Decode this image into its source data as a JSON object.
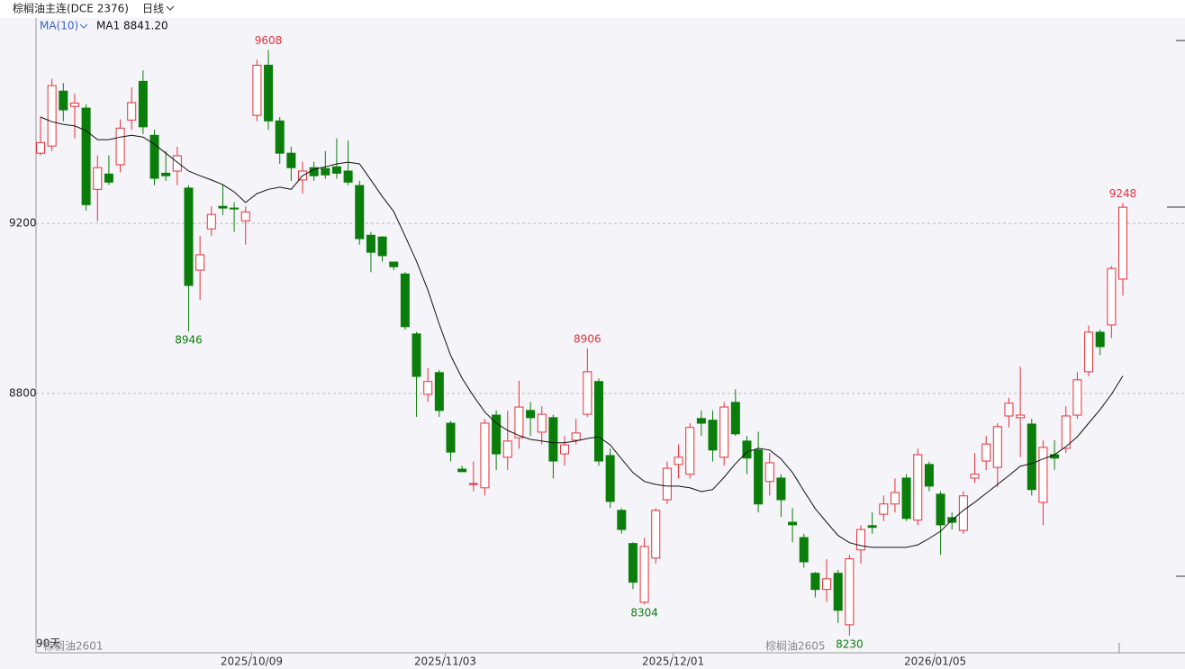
{
  "chart_data": {
    "type": "candlestick",
    "title": "棕榈油主连(DCE 2376)",
    "period": "日线",
    "indicator": "MA(10)",
    "ma_label": "MA1 8841.20",
    "range_label": "90天",
    "contract_labels": [
      "棕榈油2601",
      "棕榈油2605"
    ],
    "up_color": "#e8303a",
    "down_color": "#0b7d0b",
    "ma_color": "#111111",
    "grid": true,
    "ylim": [
      8190,
      9683
    ],
    "yticks": [
      9200,
      8800
    ],
    "x": [
      null,
      null,
      null,
      null,
      null,
      null,
      null,
      null,
      null,
      null,
      null,
      null,
      null,
      null,
      null,
      null,
      null,
      null,
      null,
      "2025/10/09",
      null,
      null,
      null,
      null,
      null,
      null,
      null,
      null,
      null,
      null,
      null,
      null,
      null,
      null,
      null,
      null,
      "2025/11/03",
      null,
      null,
      null,
      null,
      null,
      null,
      null,
      null,
      null,
      null,
      null,
      null,
      null,
      null,
      null,
      null,
      null,
      null,
      null,
      "2025/12/01",
      null,
      null,
      null,
      null,
      null,
      null,
      null,
      null,
      null,
      null,
      null,
      null,
      null,
      null,
      null,
      null,
      null,
      null,
      null,
      null,
      null,
      null,
      "2026/01/05",
      null,
      null,
      null,
      null,
      null,
      null,
      null,
      null,
      null,
      null,
      null,
      null,
      null,
      null,
      null,
      null
    ],
    "open": [
      9365,
      9382,
      9511,
      9475,
      9471,
      9280,
      9316,
      9338,
      9443,
      9534,
      9407,
      9318,
      9323,
      9283,
      9090,
      9187,
      9240,
      9236,
      9206,
      9454,
      9572,
      9441,
      9365,
      9302,
      9331,
      9329,
      9333,
      9323,
      9289,
      9172,
      9168,
      9109,
      9081,
      8940,
      8798,
      8849,
      8730,
      8622,
      8588,
      8578,
      8749,
      8650,
      8696,
      8760,
      8709,
      8743,
      8658,
      8690,
      8751,
      8828,
      8654,
      8525,
      8447,
      8309,
      8413,
      8550,
      8633,
      8610,
      8741,
      8737,
      8650,
      8779,
      8688,
      8667,
      8593,
      8601,
      8497,
      8461,
      8377,
      8339,
      8377,
      8256,
      8432,
      8489,
      8516,
      8540,
      8601,
      8502,
      8633,
      8563,
      8508,
      8478,
      8601,
      8641,
      8626,
      8747,
      8743,
      8728,
      8544,
      8656,
      8671,
      8749,
      8851,
      8944,
      8961,
      9069
    ],
    "high": [
      9450,
      9540,
      9530,
      9505,
      9480,
      9360,
      9360,
      9445,
      9520,
      9560,
      9420,
      9370,
      9380,
      9290,
      9170,
      9240,
      9290,
      9250,
      9240,
      9585,
      9608,
      9450,
      9380,
      9345,
      9345,
      9370,
      9400,
      9395,
      9300,
      9180,
      9170,
      9110,
      9085,
      8945,
      8860,
      8855,
      8735,
      8630,
      8640,
      8740,
      8760,
      8760,
      8830,
      8780,
      8770,
      8750,
      8700,
      8740,
      8906,
      8835,
      8670,
      8530,
      8450,
      8460,
      8530,
      8640,
      8680,
      8730,
      8760,
      8760,
      8780,
      8810,
      8700,
      8710,
      8660,
      8610,
      8530,
      8470,
      8380,
      8410,
      8385,
      8420,
      8490,
      8520,
      8560,
      8600,
      8610,
      8670,
      8640,
      8570,
      8520,
      8570,
      8660,
      8700,
      8730,
      8790,
      8863,
      8740,
      8690,
      8690,
      8770,
      8850,
      8960,
      8950,
      9100,
      9248
    ],
    "low": [
      9360,
      9370,
      9440,
      9400,
      9230,
      9205,
      9290,
      9320,
      9420,
      9410,
      9290,
      9300,
      9290,
      8946,
      9020,
      9170,
      9220,
      9180,
      9150,
      9440,
      9420,
      9340,
      9300,
      9270,
      9300,
      9305,
      9305,
      9290,
      9150,
      9085,
      9110,
      9090,
      8950,
      8745,
      8780,
      8745,
      8640,
      8616,
      8570,
      8560,
      8620,
      8620,
      8670,
      8700,
      8680,
      8600,
      8630,
      8680,
      8745,
      8630,
      8530,
      8470,
      8340,
      8304,
      8400,
      8540,
      8600,
      8600,
      8700,
      8640,
      8630,
      8700,
      8610,
      8520,
      8560,
      8510,
      8450,
      8390,
      8320,
      8310,
      8260,
      8230,
      8400,
      8470,
      8500,
      8520,
      8500,
      8490,
      8570,
      8420,
      8480,
      8470,
      8590,
      8620,
      8580,
      8720,
      8650,
      8560,
      8490,
      8620,
      8660,
      8740,
      8840,
      8890,
      8930,
      9030
    ],
    "close": [
      9390,
      9524,
      9467,
      9483,
      9244,
      9331,
      9297,
      9424,
      9484,
      9427,
      9306,
      9312,
      9359,
      9054,
      9126,
      9221,
      9236,
      9234,
      9227,
      9572,
      9441,
      9365,
      9331,
      9323,
      9312,
      9314,
      9318,
      9297,
      9164,
      9132,
      9124,
      9098,
      8957,
      8840,
      8828,
      8760,
      8662,
      8616,
      8588,
      8730,
      8658,
      8688,
      8768,
      8743,
      8751,
      8641,
      8679,
      8707,
      8851,
      8641,
      8546,
      8480,
      8356,
      8440,
      8525,
      8624,
      8650,
      8720,
      8730,
      8667,
      8768,
      8705,
      8648,
      8540,
      8637,
      8550,
      8491,
      8404,
      8339,
      8364,
      8290,
      8411,
      8480,
      8485,
      8540,
      8567,
      8506,
      8656,
      8582,
      8491,
      8497,
      8559,
      8610,
      8681,
      8722,
      8777,
      8749,
      8574,
      8673,
      8648,
      8747,
      8832,
      8944,
      8910,
      9094,
      9238
    ],
    "ma": [
      9450,
      9439,
      9433,
      9429,
      9418,
      9397,
      9397,
      9403,
      9407,
      9403,
      9386,
      9365,
      9344,
      9323,
      9312,
      9302,
      9291,
      9274,
      9249,
      9270,
      9280,
      9285,
      9280,
      9312,
      9327,
      9333,
      9340,
      9344,
      9340,
      9302,
      9263,
      9228,
      9170,
      9111,
      9043,
      8963,
      8889,
      8836,
      8794,
      8756,
      8730,
      8713,
      8701,
      8692,
      8688,
      8684,
      8684,
      8688,
      8694,
      8698,
      8679,
      8646,
      8614,
      8593,
      8586,
      8582,
      8582,
      8578,
      8569,
      8574,
      8603,
      8635,
      8662,
      8671,
      8667,
      8646,
      8614,
      8571,
      8529,
      8497,
      8466,
      8449,
      8442,
      8438,
      8438,
      8438,
      8438,
      8444,
      8459,
      8476,
      8502,
      8525,
      8544,
      8565,
      8586,
      8607,
      8629,
      8635,
      8646,
      8656,
      8675,
      8698,
      8730,
      8762,
      8798,
      8841.2
    ]
  }
}
